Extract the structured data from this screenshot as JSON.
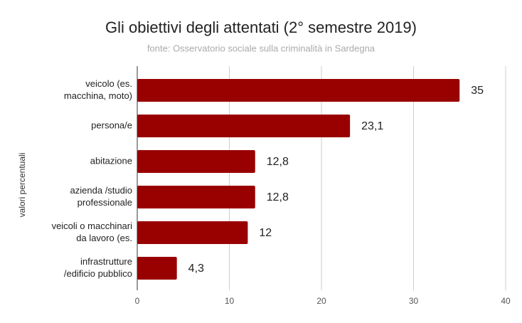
{
  "chart_data": {
    "type": "bar",
    "orientation": "horizontal",
    "title": "Gli obiettivi degli attentati (2° semestre 2019)",
    "subtitle": "fonte: Osservatorio sociale sulla criminalità in Sardegna",
    "y_label": "valori percentuali",
    "categories": [
      [
        "veicolo (es.",
        "macchina, moto)"
      ],
      [
        "persona/e"
      ],
      [
        "abitazione"
      ],
      [
        "azienda /studio",
        "professionale"
      ],
      [
        "veicoli o macchinari",
        "da lavoro (es."
      ],
      [
        "infrastrutture",
        "/edificio pubblico"
      ]
    ],
    "values": [
      35,
      23.1,
      12.8,
      12.8,
      12,
      4.3
    ],
    "value_labels": [
      "35",
      "23,1",
      "12,8",
      "12,8",
      "12",
      "4,3"
    ],
    "color": "#990000",
    "xlim": [
      0,
      40
    ],
    "xticks": [
      0,
      10,
      20,
      30,
      40
    ],
    "grid": true
  }
}
